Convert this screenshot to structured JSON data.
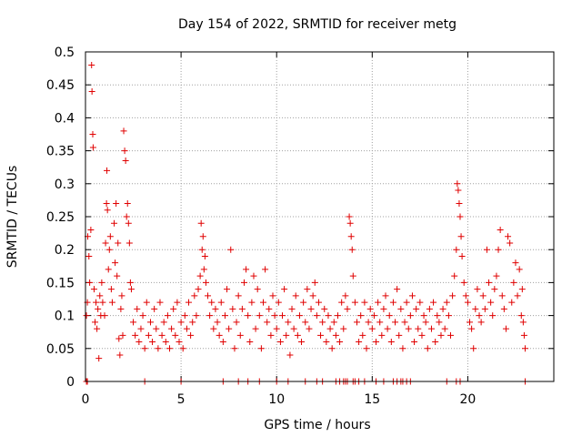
{
  "chart_data": {
    "type": "scatter",
    "title": "Day 154 of 2022, SRMTID for receiver metg",
    "xlabel": "GPS time / hours",
    "ylabel": "SRMTID / TECUs",
    "xlim": [
      0,
      24.5
    ],
    "ylim": [
      0,
      0.5
    ],
    "x_ticks": [
      0,
      5,
      10,
      15,
      20
    ],
    "x_tick_labels": [
      "0",
      "5",
      "10",
      "15",
      "20"
    ],
    "y_ticks": [
      0,
      0.05,
      0.1,
      0.15,
      0.2,
      0.25,
      0.3,
      0.35,
      0.4,
      0.45,
      0.5
    ],
    "y_tick_labels": [
      "0",
      "0.05",
      "0.1",
      "0.15",
      "0.2",
      "0.25",
      "0.3",
      "0.35",
      "0.4",
      "0.45",
      "0.5"
    ],
    "grid": true,
    "marker": "plus",
    "series": [
      {
        "name": "SRMTID",
        "color": "#e00000",
        "points": [
          [
            0.05,
            0.1
          ],
          [
            0.1,
            0.12
          ],
          [
            0.12,
            0.22
          ],
          [
            0.18,
            0.19
          ],
          [
            0.22,
            0.15
          ],
          [
            0.28,
            0.23
          ],
          [
            0.32,
            0.48
          ],
          [
            0.34,
            0.44
          ],
          [
            0.38,
            0.375
          ],
          [
            0.4,
            0.355
          ],
          [
            0.45,
            0.14
          ],
          [
            0.5,
            0.09
          ],
          [
            0.55,
            0.12
          ],
          [
            0.6,
            0.08
          ],
          [
            0.65,
            0.11
          ],
          [
            0.7,
            0.035
          ],
          [
            0.75,
            0.13
          ],
          [
            0.8,
            0.1
          ],
          [
            0.85,
            0.15
          ],
          [
            0.9,
            0.12
          ],
          [
            1.0,
            0.1
          ],
          [
            1.05,
            0.21
          ],
          [
            1.1,
            0.27
          ],
          [
            1.12,
            0.32
          ],
          [
            1.15,
            0.26
          ],
          [
            1.2,
            0.17
          ],
          [
            1.25,
            0.2
          ],
          [
            1.3,
            0.22
          ],
          [
            1.35,
            0.14
          ],
          [
            1.4,
            0.12
          ],
          [
            1.5,
            0.24
          ],
          [
            1.55,
            0.18
          ],
          [
            1.6,
            0.27
          ],
          [
            1.65,
            0.16
          ],
          [
            1.7,
            0.21
          ],
          [
            1.75,
            0.065
          ],
          [
            1.8,
            0.04
          ],
          [
            1.85,
            0.11
          ],
          [
            1.9,
            0.13
          ],
          [
            1.95,
            0.07
          ],
          [
            2.0,
            0.38
          ],
          [
            2.05,
            0.35
          ],
          [
            2.1,
            0.335
          ],
          [
            2.15,
            0.25
          ],
          [
            2.2,
            0.27
          ],
          [
            2.25,
            0.24
          ],
          [
            2.3,
            0.21
          ],
          [
            2.35,
            0.15
          ],
          [
            2.4,
            0.14
          ],
          [
            2.5,
            0.09
          ],
          [
            2.6,
            0.07
          ],
          [
            2.7,
            0.11
          ],
          [
            2.8,
            0.06
          ],
          [
            2.9,
            0.08
          ],
          [
            3.0,
            0.1
          ],
          [
            3.1,
            0.05
          ],
          [
            3.2,
            0.12
          ],
          [
            3.3,
            0.07
          ],
          [
            3.4,
            0.09
          ],
          [
            3.5,
            0.06
          ],
          [
            3.6,
            0.11
          ],
          [
            3.7,
            0.08
          ],
          [
            3.8,
            0.05
          ],
          [
            3.9,
            0.12
          ],
          [
            4.0,
            0.07
          ],
          [
            4.1,
            0.09
          ],
          [
            4.2,
            0.06
          ],
          [
            4.3,
            0.1
          ],
          [
            4.4,
            0.05
          ],
          [
            4.5,
            0.08
          ],
          [
            4.6,
            0.11
          ],
          [
            4.7,
            0.07
          ],
          [
            4.8,
            0.12
          ],
          [
            4.9,
            0.06
          ],
          [
            5.0,
            0.09
          ],
          [
            5.1,
            0.05
          ],
          [
            5.2,
            0.1
          ],
          [
            5.3,
            0.08
          ],
          [
            5.4,
            0.12
          ],
          [
            5.5,
            0.07
          ],
          [
            5.6,
            0.09
          ],
          [
            5.7,
            0.13
          ],
          [
            5.8,
            0.1
          ],
          [
            5.9,
            0.14
          ],
          [
            6.0,
            0.16
          ],
          [
            6.05,
            0.24
          ],
          [
            6.1,
            0.2
          ],
          [
            6.15,
            0.22
          ],
          [
            6.2,
            0.17
          ],
          [
            6.25,
            0.19
          ],
          [
            6.3,
            0.15
          ],
          [
            6.4,
            0.13
          ],
          [
            6.5,
            0.1
          ],
          [
            6.6,
            0.12
          ],
          [
            6.7,
            0.08
          ],
          [
            6.8,
            0.11
          ],
          [
            6.9,
            0.09
          ],
          [
            7.0,
            0.07
          ],
          [
            7.1,
            0.12
          ],
          [
            7.2,
            0.06
          ],
          [
            7.3,
            0.1
          ],
          [
            7.4,
            0.14
          ],
          [
            7.5,
            0.08
          ],
          [
            7.6,
            0.2
          ],
          [
            7.7,
            0.11
          ],
          [
            7.8,
            0.05
          ],
          [
            7.9,
            0.09
          ],
          [
            8.0,
            0.13
          ],
          [
            8.1,
            0.07
          ],
          [
            8.2,
            0.11
          ],
          [
            8.3,
            0.15
          ],
          [
            8.4,
            0.17
          ],
          [
            8.5,
            0.1
          ],
          [
            8.6,
            0.06
          ],
          [
            8.7,
            0.12
          ],
          [
            8.8,
            0.16
          ],
          [
            8.9,
            0.08
          ],
          [
            9.0,
            0.14
          ],
          [
            9.1,
            0.1
          ],
          [
            9.2,
            0.05
          ],
          [
            9.3,
            0.12
          ],
          [
            9.4,
            0.17
          ],
          [
            9.5,
            0.09
          ],
          [
            9.6,
            0.11
          ],
          [
            9.7,
            0.07
          ],
          [
            9.8,
            0.13
          ],
          [
            9.9,
            0.1
          ],
          [
            10.0,
            0.08
          ],
          [
            10.1,
            0.12
          ],
          [
            10.2,
            0.06
          ],
          [
            10.3,
            0.1
          ],
          [
            10.4,
            0.14
          ],
          [
            10.5,
            0.07
          ],
          [
            10.6,
            0.09
          ],
          [
            10.7,
            0.04
          ],
          [
            10.8,
            0.11
          ],
          [
            10.9,
            0.08
          ],
          [
            11.0,
            0.13
          ],
          [
            11.1,
            0.07
          ],
          [
            11.2,
            0.1
          ],
          [
            11.3,
            0.06
          ],
          [
            11.4,
            0.12
          ],
          [
            11.5,
            0.09
          ],
          [
            11.6,
            0.14
          ],
          [
            11.7,
            0.08
          ],
          [
            11.8,
            0.11
          ],
          [
            11.9,
            0.13
          ],
          [
            12.0,
            0.15
          ],
          [
            12.1,
            0.1
          ],
          [
            12.2,
            0.12
          ],
          [
            12.3,
            0.07
          ],
          [
            12.4,
            0.09
          ],
          [
            12.5,
            0.11
          ],
          [
            12.6,
            0.06
          ],
          [
            12.7,
            0.1
          ],
          [
            12.8,
            0.08
          ],
          [
            12.9,
            0.05
          ],
          [
            13.0,
            0.09
          ],
          [
            13.1,
            0.07
          ],
          [
            13.2,
            0.1
          ],
          [
            13.3,
            0.06
          ],
          [
            13.4,
            0.12
          ],
          [
            13.5,
            0.08
          ],
          [
            13.6,
            0.13
          ],
          [
            13.7,
            0.11
          ],
          [
            13.8,
            0.25
          ],
          [
            13.85,
            0.24
          ],
          [
            13.9,
            0.22
          ],
          [
            13.95,
            0.2
          ],
          [
            14.0,
            0.16
          ],
          [
            14.1,
            0.12
          ],
          [
            14.2,
            0.09
          ],
          [
            14.3,
            0.06
          ],
          [
            14.4,
            0.1
          ],
          [
            14.5,
            0.07
          ],
          [
            14.6,
            0.12
          ],
          [
            14.7,
            0.05
          ],
          [
            14.8,
            0.09
          ],
          [
            14.9,
            0.11
          ],
          [
            15.0,
            0.08
          ],
          [
            15.1,
            0.1
          ],
          [
            15.2,
            0.06
          ],
          [
            15.3,
            0.12
          ],
          [
            15.4,
            0.09
          ],
          [
            15.5,
            0.07
          ],
          [
            15.6,
            0.11
          ],
          [
            15.7,
            0.13
          ],
          [
            15.8,
            0.08
          ],
          [
            15.9,
            0.1
          ],
          [
            16.0,
            0.06
          ],
          [
            16.1,
            0.12
          ],
          [
            16.2,
            0.09
          ],
          [
            16.3,
            0.14
          ],
          [
            16.4,
            0.07
          ],
          [
            16.5,
            0.11
          ],
          [
            16.6,
            0.05
          ],
          [
            16.7,
            0.09
          ],
          [
            16.8,
            0.12
          ],
          [
            16.9,
            0.08
          ],
          [
            17.0,
            0.1
          ],
          [
            17.1,
            0.13
          ],
          [
            17.2,
            0.06
          ],
          [
            17.3,
            0.11
          ],
          [
            17.4,
            0.08
          ],
          [
            17.5,
            0.12
          ],
          [
            17.6,
            0.07
          ],
          [
            17.7,
            0.1
          ],
          [
            17.8,
            0.09
          ],
          [
            17.9,
            0.05
          ],
          [
            18.0,
            0.11
          ],
          [
            18.1,
            0.08
          ],
          [
            18.2,
            0.12
          ],
          [
            18.3,
            0.06
          ],
          [
            18.4,
            0.1
          ],
          [
            18.5,
            0.09
          ],
          [
            18.6,
            0.07
          ],
          [
            18.7,
            0.11
          ],
          [
            18.8,
            0.08
          ],
          [
            18.9,
            0.12
          ],
          [
            19.0,
            0.1
          ],
          [
            19.1,
            0.07
          ],
          [
            19.2,
            0.13
          ],
          [
            19.3,
            0.16
          ],
          [
            19.4,
            0.2
          ],
          [
            19.45,
            0.3
          ],
          [
            19.5,
            0.29
          ],
          [
            19.55,
            0.27
          ],
          [
            19.6,
            0.25
          ],
          [
            19.65,
            0.22
          ],
          [
            19.7,
            0.19
          ],
          [
            19.8,
            0.15
          ],
          [
            19.9,
            0.13
          ],
          [
            20.0,
            0.12
          ],
          [
            20.1,
            0.09
          ],
          [
            20.2,
            0.08
          ],
          [
            20.3,
            0.05
          ],
          [
            20.4,
            0.11
          ],
          [
            20.5,
            0.14
          ],
          [
            20.6,
            0.1
          ],
          [
            20.7,
            0.09
          ],
          [
            20.8,
            0.13
          ],
          [
            20.9,
            0.11
          ],
          [
            21.0,
            0.2
          ],
          [
            21.1,
            0.15
          ],
          [
            21.2,
            0.12
          ],
          [
            21.3,
            0.1
          ],
          [
            21.4,
            0.14
          ],
          [
            21.5,
            0.16
          ],
          [
            21.6,
            0.2
          ],
          [
            21.7,
            0.23
          ],
          [
            21.8,
            0.13
          ],
          [
            21.9,
            0.11
          ],
          [
            22.0,
            0.08
          ],
          [
            22.1,
            0.22
          ],
          [
            22.2,
            0.21
          ],
          [
            22.3,
            0.12
          ],
          [
            22.4,
            0.15
          ],
          [
            22.5,
            0.18
          ],
          [
            22.6,
            0.13
          ],
          [
            22.7,
            0.17
          ],
          [
            22.8,
            0.1
          ],
          [
            22.85,
            0.14
          ],
          [
            22.9,
            0.09
          ],
          [
            22.95,
            0.07
          ],
          [
            23.0,
            0.05
          ]
        ],
        "zero_points": [
          0.05,
          0.1,
          3.1,
          5.0,
          7.2,
          8.0,
          8.5,
          9.1,
          10.0,
          10.6,
          11.5,
          12.1,
          12.4,
          13.1,
          13.3,
          13.5,
          13.6,
          13.7,
          14.0,
          14.1,
          14.3,
          14.6,
          15.2,
          15.6,
          16.1,
          16.3,
          16.5,
          16.6,
          16.8,
          17.0,
          18.9,
          19.4,
          19.6,
          23.0
        ]
      }
    ]
  }
}
